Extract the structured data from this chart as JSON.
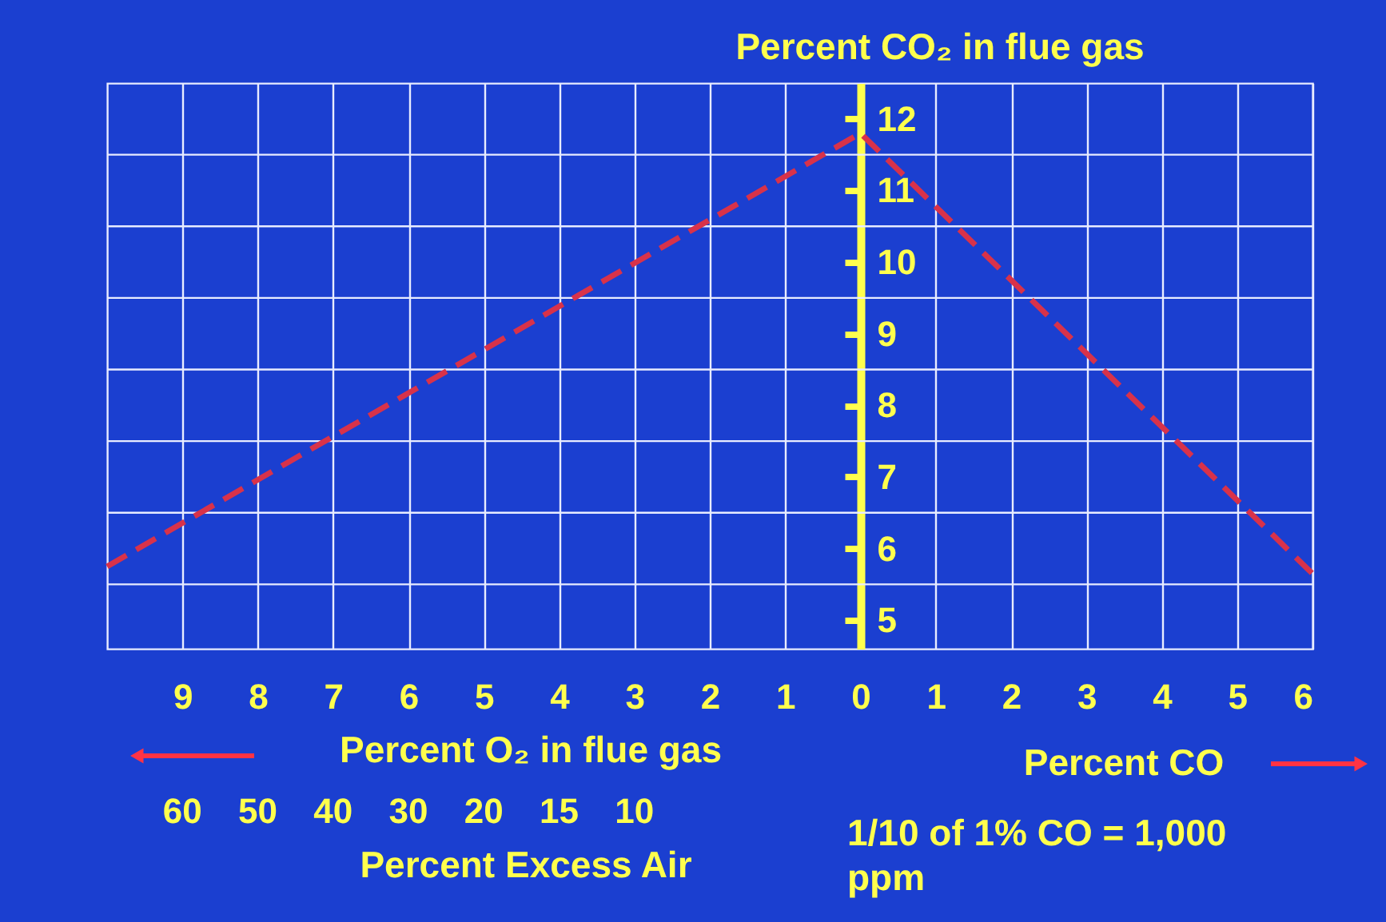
{
  "chart_data": {
    "type": "line",
    "ylabel": "Percent CO₂ in flue gas",
    "xlabel": "Percent O₂ in flue gas",
    "x2label": "Percent Excess Air",
    "annotations": [
      "Percent CO",
      "1/10 of 1% CO = 1,000 ppm",
      "60",
      "50",
      "40",
      "30",
      "20",
      "15",
      "10"
    ],
    "xlim": [
      -10,
      6
    ],
    "xticks": [
      {
        "value": -9,
        "label": "9"
      },
      {
        "value": -8,
        "label": "8"
      },
      {
        "value": -7,
        "label": "7"
      },
      {
        "value": -6,
        "label": "6"
      },
      {
        "value": -5,
        "label": "5"
      },
      {
        "value": -4,
        "label": "4"
      },
      {
        "value": -3,
        "label": "3"
      },
      {
        "value": -2,
        "label": "2"
      },
      {
        "value": -1,
        "label": "1"
      },
      0,
      1,
      2,
      3,
      4,
      5,
      6
    ],
    "ylim": [
      4.6,
      12.5
    ],
    "yticks": [
      5,
      6,
      7,
      8,
      9,
      10,
      11,
      12,
      {
        "value": 5.5,
        "label": null
      },
      {
        "value": 6.5,
        "label": null
      },
      {
        "value": 7.5,
        "label": null
      },
      {
        "value": 8.5,
        "label": null
      },
      {
        "value": 9.5,
        "label": null
      },
      {
        "value": 10.5,
        "label": null
      },
      {
        "value": 11.5,
        "label": null
      }
    ],
    "x": [
      -10,
      0,
      6
    ],
    "series": [
      {
        "color": "#d8324a",
        "values": [
          5.75,
          11.8,
          5.65
        ]
      }
    ],
    "grid": true,
    "marker": "none",
    "line_style": "dashed"
  }
}
